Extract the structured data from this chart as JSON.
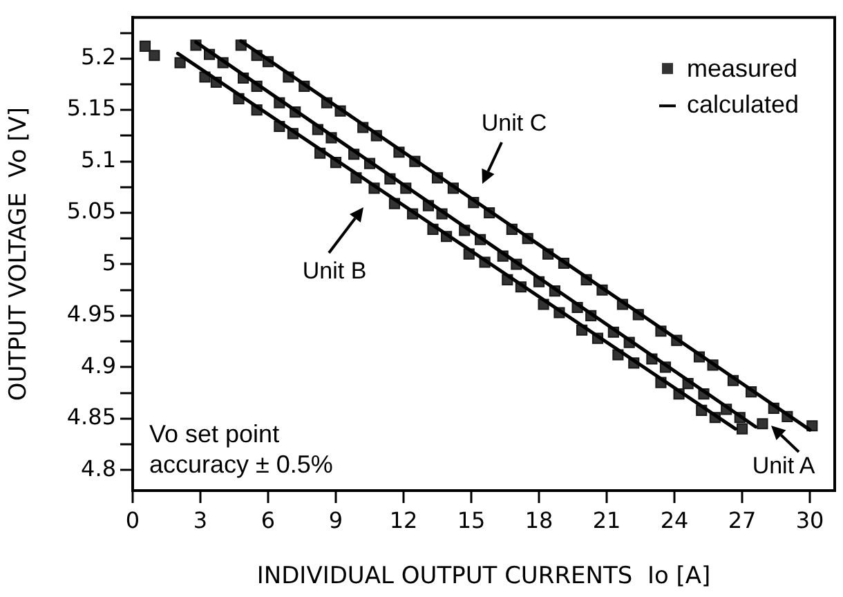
{
  "chart_data": {
    "type": "scatter",
    "xlabel": "INDIVIDUAL OUTPUT CURRENTS  Io [A]",
    "ylabel": "OUTPUT VOLTAGE  Vo [V]",
    "xlim": [
      0,
      31.1
    ],
    "ylim": [
      4.78,
      5.24
    ],
    "xticks": [
      0,
      3,
      6,
      9,
      12,
      15,
      18,
      21,
      24,
      27,
      30
    ],
    "yticks": [
      4.8,
      {
        "value": 4.825,
        "label": null
      },
      4.85,
      {
        "value": 4.875,
        "label": null
      },
      4.9,
      {
        "value": 4.925,
        "label": null
      },
      4.95,
      {
        "value": 4.975,
        "label": null
      },
      5,
      {
        "value": 5.025,
        "label": null
      },
      5.05,
      {
        "value": 5.075,
        "label": null
      },
      5.1,
      {
        "value": 5.125,
        "label": null
      },
      5.15,
      {
        "value": 5.175,
        "label": null
      },
      5.2,
      {
        "value": 5.225,
        "label": null
      }
    ],
    "grid": false,
    "legend": "top right",
    "annotations": [
      "Unit C",
      "Unit B",
      "Unit A",
      "Vo set point accuracy ± 0.5%"
    ],
    "series": [
      {
        "name": "measured",
        "marker": "square",
        "color": "#333333",
        "x": [
          0.55,
          0.96,
          2.1,
          3.2,
          3.7,
          4.7,
          5.5,
          6.5,
          7.1,
          8.3,
          9.0,
          9.9,
          10.7,
          11.6,
          12.4,
          13.3,
          13.9,
          14.9,
          15.6,
          16.6,
          17.2,
          18.2,
          18.9,
          19.9,
          20.6,
          21.5,
          22.2,
          23.4,
          24.2,
          25.2,
          25.8,
          27.0
        ],
        "values": [
          5.212,
          5.203,
          5.196,
          5.182,
          5.177,
          5.161,
          5.15,
          5.134,
          5.127,
          5.108,
          5.099,
          5.084,
          5.074,
          5.059,
          5.049,
          5.034,
          5.027,
          5.01,
          5.002,
          4.985,
          4.978,
          4.961,
          4.953,
          4.936,
          4.928,
          4.912,
          4.904,
          4.885,
          4.874,
          4.858,
          4.851,
          4.84
        ]
      },
      {
        "marker": "square",
        "color": "#333333",
        "x": [
          2.8,
          3.4,
          4.0,
          4.9,
          5.5,
          6.5,
          7.2,
          8.2,
          8.8,
          9.8,
          10.5,
          11.4,
          12.1,
          13.1,
          13.7,
          14.7,
          15.4,
          16.4,
          17.0,
          18.0,
          18.7,
          19.7,
          20.3,
          21.3,
          22.0,
          23.0,
          23.6,
          24.6,
          25.3,
          26.3,
          26.9,
          27.9
        ],
        "values": [
          5.213,
          5.204,
          5.196,
          5.181,
          5.173,
          5.157,
          5.148,
          5.131,
          5.123,
          5.107,
          5.098,
          5.083,
          5.074,
          5.057,
          5.049,
          5.033,
          5.024,
          5.008,
          5.0,
          4.983,
          4.974,
          4.958,
          4.95,
          4.934,
          4.924,
          4.908,
          4.9,
          4.884,
          4.874,
          4.859,
          4.851,
          4.845
        ]
      },
      {
        "marker": "square",
        "color": "#333333",
        "x": [
          4.8,
          5.5,
          6.0,
          6.9,
          7.6,
          8.6,
          9.2,
          10.2,
          10.8,
          11.8,
          12.5,
          13.5,
          14.2,
          15.1,
          15.8,
          16.8,
          17.5,
          18.4,
          19.1,
          20.1,
          20.8,
          21.7,
          22.4,
          23.4,
          24.1,
          25.1,
          25.7,
          26.6,
          27.4,
          28.4,
          29.0,
          30.1
        ],
        "values": [
          5.213,
          5.203,
          5.197,
          5.182,
          5.173,
          5.157,
          5.149,
          5.133,
          5.125,
          5.109,
          5.1,
          5.084,
          5.074,
          5.06,
          5.05,
          5.034,
          5.025,
          5.01,
          5.001,
          4.985,
          4.975,
          4.961,
          4.951,
          4.935,
          4.926,
          4.91,
          4.902,
          4.887,
          4.876,
          4.86,
          4.852,
          4.843
        ]
      },
      {
        "name": "calculated",
        "type": "line",
        "marker": "none",
        "line_style": "solid",
        "color": "#000000",
        "x": [
          2.0,
          26.7
        ],
        "values": [
          5.205,
          4.84
        ]
      },
      {
        "type": "line",
        "marker": "none",
        "line_style": "solid",
        "color": "#000000",
        "x": [
          2.8,
          27.6
        ],
        "values": [
          5.216,
          4.842
        ]
      },
      {
        "type": "line",
        "marker": "none",
        "line_style": "solid",
        "color": "#000000",
        "x": [
          4.8,
          30.0
        ],
        "values": [
          5.217,
          4.839
        ]
      }
    ]
  }
}
